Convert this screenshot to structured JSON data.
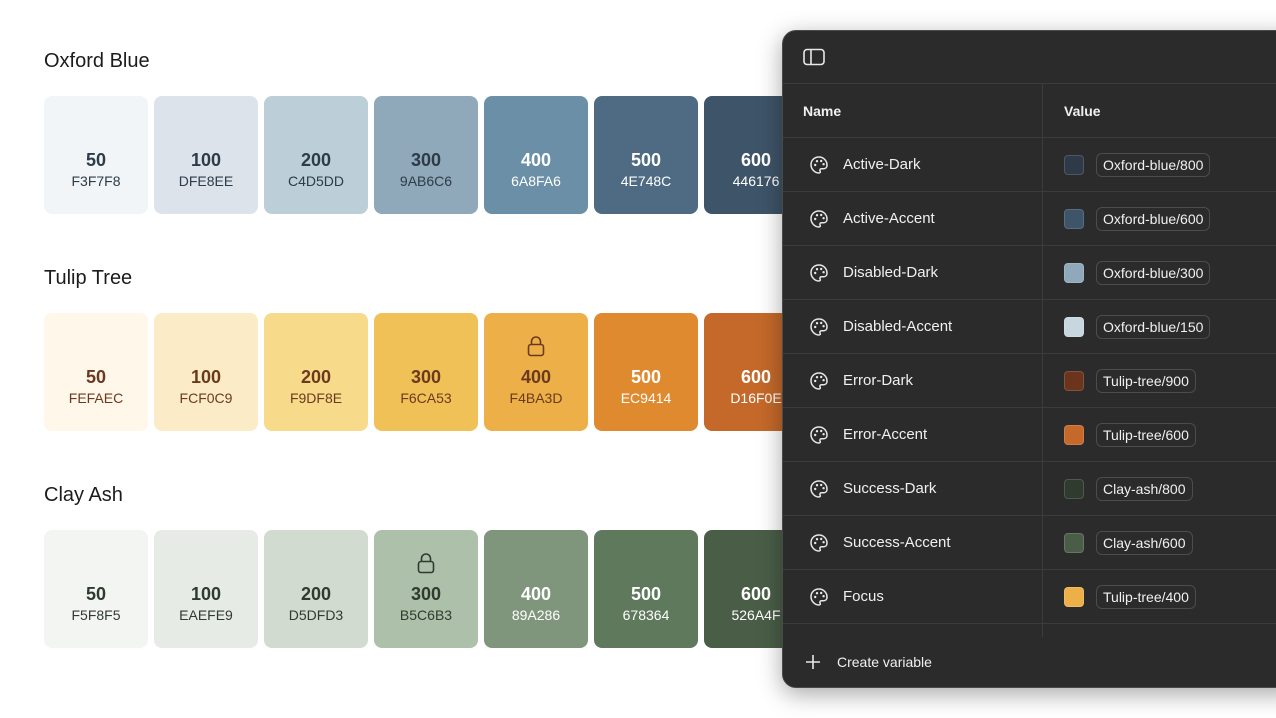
{
  "colors": {
    "page_bg": "#FFFFFF",
    "panel_bg": "#2B2B2B",
    "panel_border": "#4A4A4A",
    "panel_text": "#F0F0F0",
    "dark_swatch_text": "#FFFFFF"
  },
  "palettes": [
    {
      "name": "Oxford Blue",
      "text_color": "#2E3B48",
      "swatches": [
        {
          "step": "50",
          "hex": "F3F7F8",
          "color": "#F1F5F7",
          "locked": false,
          "dark": false
        },
        {
          "step": "100",
          "hex": "DFE8EE",
          "color": "#DCE3EB",
          "locked": false,
          "dark": false
        },
        {
          "step": "200",
          "hex": "C4D5DD",
          "color": "#BCCED7",
          "locked": false,
          "dark": false
        },
        {
          "step": "300",
          "hex": "9AB6C6",
          "color": "#8FA8BA",
          "locked": false,
          "dark": false
        },
        {
          "step": "400",
          "hex": "6A8FA6",
          "color": "#6A8FA6",
          "locked": false,
          "dark": true
        },
        {
          "step": "500",
          "hex": "4E748C",
          "color": "#4E6B83",
          "locked": false,
          "dark": true
        },
        {
          "step": "600",
          "hex": "446176",
          "color": "#3E5468",
          "locked": false,
          "dark": true
        }
      ]
    },
    {
      "name": "Tulip Tree",
      "text_color": "#6B3A1E",
      "swatches": [
        {
          "step": "50",
          "hex": "FEFAEC",
          "color": "#FEF7EA",
          "locked": false,
          "dark": false
        },
        {
          "step": "100",
          "hex": "FCF0C9",
          "color": "#FBEBC6",
          "locked": false,
          "dark": false
        },
        {
          "step": "200",
          "hex": "F9DF8E",
          "color": "#F7DA8A",
          "locked": false,
          "dark": false
        },
        {
          "step": "300",
          "hex": "F6CA53",
          "color": "#F0C156",
          "locked": false,
          "dark": false
        },
        {
          "step": "400",
          "hex": "F4BA3D",
          "color": "#EDB049",
          "locked": true,
          "dark": false
        },
        {
          "step": "500",
          "hex": "EC9414",
          "color": "#E08A30",
          "locked": false,
          "dark": true
        },
        {
          "step": "600",
          "hex": "D16F0E",
          "color": "#C4692A",
          "locked": false,
          "dark": true
        }
      ]
    },
    {
      "name": "Clay Ash",
      "text_color": "#2F3B2E",
      "swatches": [
        {
          "step": "50",
          "hex": "F5F8F5",
          "color": "#F3F5F3",
          "locked": false,
          "dark": false
        },
        {
          "step": "100",
          "hex": "EAEFE9",
          "color": "#E6EBE6",
          "locked": false,
          "dark": false
        },
        {
          "step": "200",
          "hex": "D5DFD3",
          "color": "#D1DBD0",
          "locked": false,
          "dark": false
        },
        {
          "step": "300",
          "hex": "B5C6B3",
          "color": "#ADC0AA",
          "locked": true,
          "dark": false
        },
        {
          "step": "400",
          "hex": "89A286",
          "color": "#7F967C",
          "locked": false,
          "dark": true
        },
        {
          "step": "500",
          "hex": "678364",
          "color": "#5F795C",
          "locked": false,
          "dark": true
        },
        {
          "step": "600",
          "hex": "526A4F",
          "color": "#4A5E47",
          "locked": false,
          "dark": true
        }
      ]
    }
  ],
  "panel": {
    "toggle_icon": "sidebar-toggle-icon",
    "table": {
      "headers": {
        "name": "Name",
        "value": "Value"
      },
      "rows": [
        {
          "name": "Active-Dark",
          "value": "Oxford-blue/800",
          "chip": "#2F3A48"
        },
        {
          "name": "Active-Accent",
          "value": "Oxford-blue/600",
          "chip": "#3E5468"
        },
        {
          "name": "Disabled-Dark",
          "value": "Oxford-blue/300",
          "chip": "#8FA8BA"
        },
        {
          "name": "Disabled-Accent",
          "value": "Oxford-blue/150",
          "chip": "#C7D6DF"
        },
        {
          "name": "Error-Dark",
          "value": "Tulip-tree/900",
          "chip": "#6A351C"
        },
        {
          "name": "Error-Accent",
          "value": "Tulip-tree/600",
          "chip": "#C4692A"
        },
        {
          "name": "Success-Dark",
          "value": "Clay-ash/800",
          "chip": "#2F3B2E"
        },
        {
          "name": "Success-Accent",
          "value": "Clay-ash/600",
          "chip": "#4A5E47"
        },
        {
          "name": "Focus",
          "value": "Tulip-tree/400",
          "chip": "#EDB049"
        }
      ]
    },
    "footer": {
      "create_label": "Create variable"
    }
  }
}
